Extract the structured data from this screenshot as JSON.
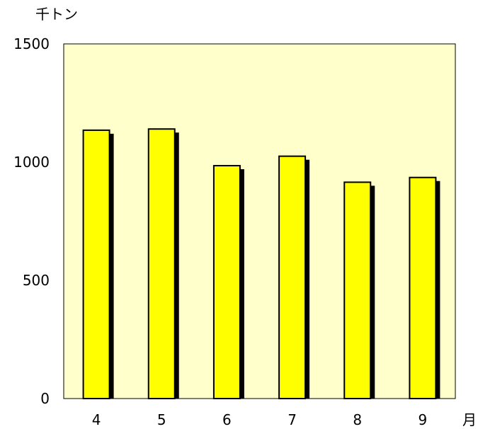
{
  "chart_data": {
    "type": "bar",
    "y_unit_label": "千トン",
    "x_unit_label": "月",
    "categories": [
      "4",
      "5",
      "6",
      "7",
      "8",
      "9"
    ],
    "values": [
      1135,
      1140,
      985,
      1025,
      915,
      935
    ],
    "ylim": [
      0,
      1500
    ],
    "yticks": [
      0,
      500,
      1000,
      1500
    ],
    "grid": false,
    "legend": "none",
    "colors": {
      "plot_background": "#ffffcc",
      "bar_fill": "#ffff00",
      "bar_outline": "#000000",
      "bar_shadow": "#000000"
    }
  }
}
